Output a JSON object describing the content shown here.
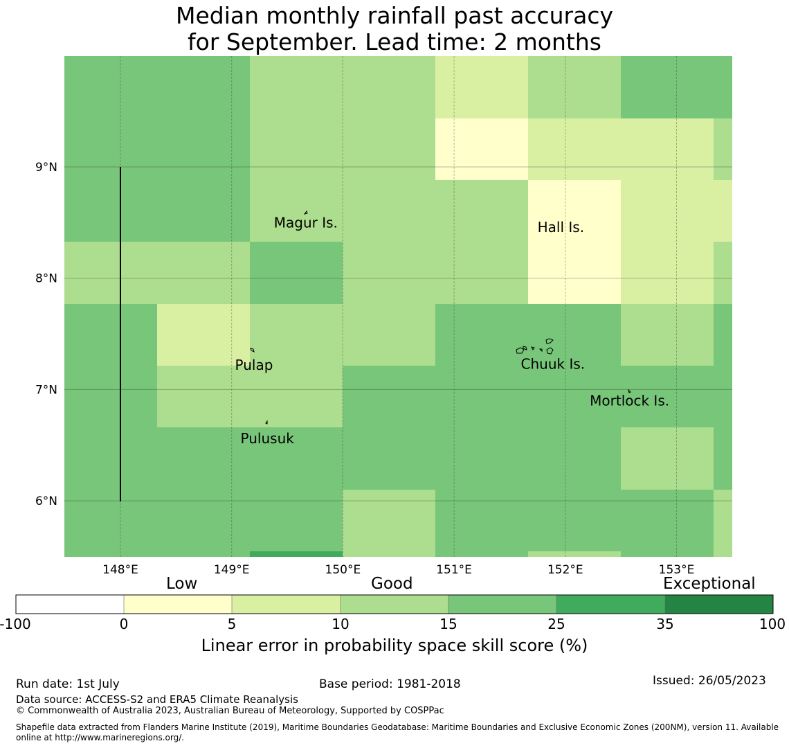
{
  "title": {
    "line1": "Median monthly rainfall past accuracy",
    "line2": "for September. Lead time: 2 months"
  },
  "map": {
    "x_ticks": [
      "148°E",
      "149°E",
      "150°E",
      "151°E",
      "152°E",
      "153°E"
    ],
    "y_ticks": [
      "9°N",
      "8°N",
      "7°N",
      "6°N"
    ],
    "places": [
      "Magur Is.",
      "Hall Is.",
      "Pulap",
      "Chuuk Is.",
      "Mortlock Is.",
      "Pulusuk"
    ],
    "skill_grid": [
      [
        20,
        20,
        12,
        12,
        7,
        12,
        20
      ],
      [
        20,
        20,
        12,
        12,
        2,
        7,
        7
      ],
      [
        20,
        20,
        12,
        12,
        12,
        2,
        7
      ],
      [
        12,
        12,
        20,
        12,
        12,
        2,
        7
      ],
      [
        20,
        7,
        12,
        12,
        20,
        20,
        12
      ],
      [
        20,
        12,
        12,
        20,
        20,
        20,
        20
      ],
      [
        20,
        20,
        20,
        20,
        20,
        20,
        12
      ],
      [
        20,
        20,
        20,
        12,
        20,
        20,
        20
      ]
    ],
    "last_column_skill": [
      20,
      12,
      7,
      12,
      20,
      20,
      20,
      12
    ]
  },
  "colorbar": {
    "category_labels": [
      "Low",
      "Good",
      "Exceptional"
    ],
    "boundaries": [
      -100,
      0,
      5,
      10,
      15,
      25,
      35,
      100
    ],
    "tick_labels": [
      "-100",
      "0",
      "5",
      "10",
      "15",
      "25",
      "35",
      "100"
    ],
    "colors": [
      "#ffffff",
      "#ffffcc",
      "#d9f0a3",
      "#addd8e",
      "#78c679",
      "#41ab5d",
      "#238443"
    ],
    "label": "Linear error in probability space skill score (%)"
  },
  "footer": {
    "run_date": "Run date: 1st July",
    "base_period": "Base period: 1981-2018",
    "issued": "Issued: 26/05/2023",
    "data_source": "Data source: ACCESS-S2 and ERA5 Climate Reanalysis",
    "copyright": "© Commonwealth of Australia 2023, Australian Bureau of Meteorology, Supported by COSPPac",
    "shapefile": "Shapefile data extracted from Flanders Marine Institute (2019), Maritime Boundaries Geodatabase: Maritime Boundaries and Exclusive Economic Zones (200NM), version 11. Available online at http://www.marineregions.org/."
  }
}
